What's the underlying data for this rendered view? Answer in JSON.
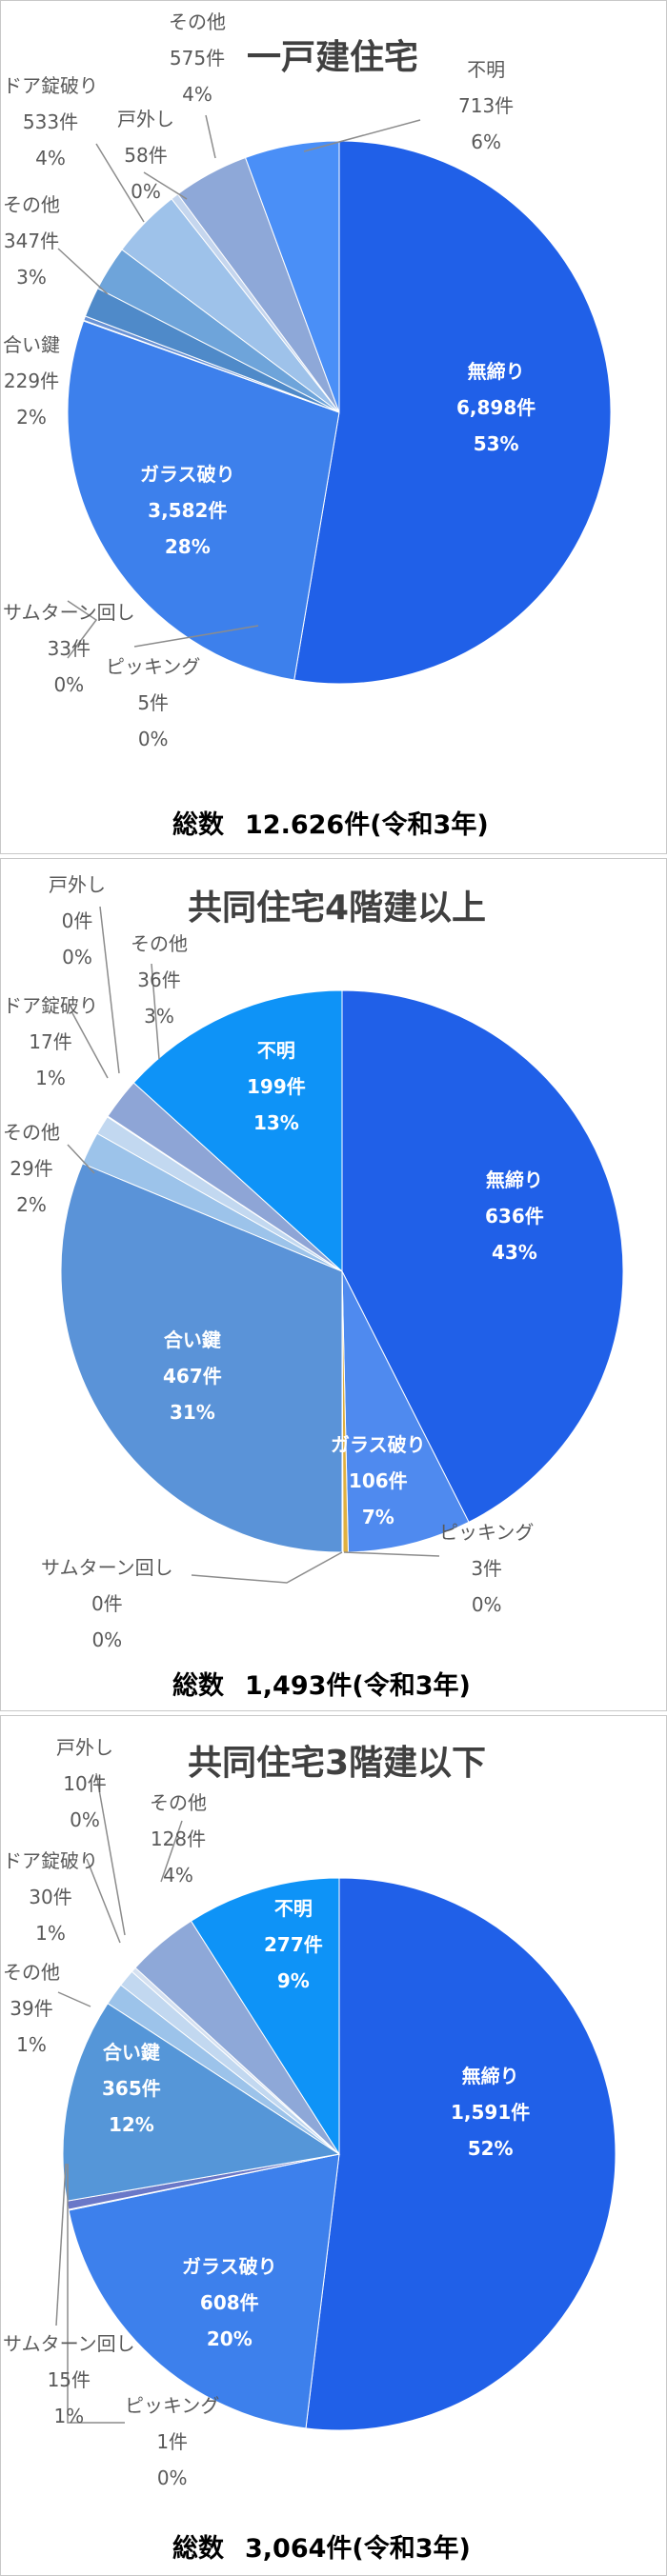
{
  "chart_data": [
    {
      "type": "pie",
      "title": "一戸建住宅",
      "total_label": "総数",
      "total_value": "12.626件(令和3年)",
      "slices": [
        {
          "name": "無締り",
          "count_label": "6,898件",
          "value": 53,
          "pct_label": "53%",
          "color": "#2060e8"
        },
        {
          "name": "ガラス破り",
          "count_label": "3,582件",
          "value": 28,
          "pct_label": "28%",
          "color": "#3d80ec"
        },
        {
          "name": "ピッキング",
          "count_label": "5件",
          "value": 0.04,
          "pct_label": "0%",
          "color": "#3a6fc4"
        },
        {
          "name": "サムターン回し",
          "count_label": "33件",
          "value": 0.26,
          "pct_label": "0%",
          "color": "#6a93d6"
        },
        {
          "name": "合い鍵",
          "count_label": "229件",
          "value": 1.8,
          "pct_label": "2%",
          "color": "#4f8ac9"
        },
        {
          "name": "その他",
          "count_label": "347件",
          "value": 2.7,
          "pct_label": "3%",
          "color": "#6ea4da"
        },
        {
          "name": "ドア錠破り",
          "count_label": "533件",
          "value": 4.2,
          "pct_label": "4%",
          "color": "#9ec2ea"
        },
        {
          "name": "戸外し",
          "count_label": "58件",
          "value": 0.46,
          "pct_label": "0%",
          "color": "#c5d6ee"
        },
        {
          "name": "その他",
          "count_label": "575件",
          "value": 4.55,
          "pct_label": "4%",
          "color": "#8ea8d8"
        },
        {
          "name": "不明",
          "count_label": "713件",
          "value": 5.65,
          "pct_label": "6%",
          "color": "#4a8ff7"
        }
      ]
    },
    {
      "type": "pie",
      "title": "共同住宅4階建以上",
      "total_label": "総数",
      "total_value": "1,493件(令和3年)",
      "slices": [
        {
          "name": "無締り",
          "count_label": "636件",
          "value": 42.6,
          "pct_label": "43%",
          "color": "#2060e8"
        },
        {
          "name": "ガラス破り",
          "count_label": "106件",
          "value": 7.1,
          "pct_label": "7%",
          "color": "#4f8aef"
        },
        {
          "name": "ピッキング",
          "count_label": "3件",
          "value": 0.3,
          "pct_label": "0%",
          "color": "#e0b040"
        },
        {
          "name": "サムターン回し",
          "count_label": "0件",
          "value": 0.05,
          "pct_label": "0%",
          "color": "#9bb5dd"
        },
        {
          "name": "合い鍵",
          "count_label": "467件",
          "value": 31.3,
          "pct_label": "31%",
          "color": "#5a93d8"
        },
        {
          "name": "その他",
          "count_label": "29件",
          "value": 1.9,
          "pct_label": "2%",
          "color": "#9cc3ea"
        },
        {
          "name": "ドア錠破り",
          "count_label": "17件",
          "value": 1.1,
          "pct_label": "1%",
          "color": "#c2d8f0"
        },
        {
          "name": "戸外し",
          "count_label": "0件",
          "value": 0.05,
          "pct_label": "0%",
          "color": "#d5e1f1"
        },
        {
          "name": "その他",
          "count_label": "36件",
          "value": 2.4,
          "pct_label": "3%",
          "color": "#8ea5d6"
        },
        {
          "name": "不明",
          "count_label": "199件",
          "value": 13.3,
          "pct_label": "13%",
          "color": "#0e93f7"
        }
      ]
    },
    {
      "type": "pie",
      "title": "共同住宅3階建以下",
      "total_label": "総数",
      "total_value": "3,064件(令和3年)",
      "slices": [
        {
          "name": "無締り",
          "count_label": "1,591件",
          "value": 51.9,
          "pct_label": "52%",
          "color": "#2060e8"
        },
        {
          "name": "ガラス破り",
          "count_label": "608件",
          "value": 19.8,
          "pct_label": "20%",
          "color": "#3d80ec"
        },
        {
          "name": "ピッキング",
          "count_label": "1件",
          "value": 0.05,
          "pct_label": "0%",
          "color": "#3a6fc4"
        },
        {
          "name": "サムターン回し",
          "count_label": "15件",
          "value": 0.5,
          "pct_label": "1%",
          "color": "#6a78c8"
        },
        {
          "name": "合い鍵",
          "count_label": "365件",
          "value": 11.9,
          "pct_label": "12%",
          "color": "#5596d8"
        },
        {
          "name": "その他",
          "count_label": "39件",
          "value": 1.3,
          "pct_label": "1%",
          "color": "#9cc3ea"
        },
        {
          "name": "ドア錠破り",
          "count_label": "30件",
          "value": 1.0,
          "pct_label": "1%",
          "color": "#c2d8f0"
        },
        {
          "name": "戸外し",
          "count_label": "10件",
          "value": 0.3,
          "pct_label": "0%",
          "color": "#d5e1f1"
        },
        {
          "name": "その他",
          "count_label": "128件",
          "value": 4.2,
          "pct_label": "4%",
          "color": "#8ea8d8"
        },
        {
          "name": "不明",
          "count_label": "277件",
          "value": 9.0,
          "pct_label": "9%",
          "color": "#0e93f7"
        }
      ]
    }
  ]
}
